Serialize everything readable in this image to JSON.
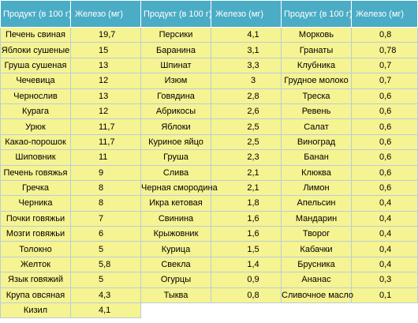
{
  "header": {
    "product": "Продукт (в 100 г)",
    "iron": "Железо (мг)"
  },
  "rows": [
    {
      "p1": "Печень свиная",
      "v1": "19,7",
      "p2": "Персики",
      "v2": "4,1",
      "p3": "Морковь",
      "v3": "0,8"
    },
    {
      "p1": "Яблоки сушеные",
      "v1": "15",
      "p2": "Баранина",
      "v2": "3,1",
      "p3": "Гранаты",
      "v3": "0,78"
    },
    {
      "p1": "Груша сушеная",
      "v1": "13",
      "p2": "Шпинат",
      "v2": "3,3",
      "p3": "Клубника",
      "v3": "0,7"
    },
    {
      "p1": "Чечевица",
      "v1": "12",
      "p2": "Изюм",
      "v2": "3",
      "p3": "Грудное молоко",
      "v3": "0,7"
    },
    {
      "p1": "Чернослив",
      "v1": "13",
      "p2": "Говядина",
      "v2": "2,8",
      "p3": "Треска",
      "v3": "0,6"
    },
    {
      "p1": "Курага",
      "v1": "12",
      "p2": "Абрикосы",
      "v2": "2,6",
      "p3": "Ревень",
      "v3": "0,6"
    },
    {
      "p1": "Урюк",
      "v1": "11,7",
      "p2": "Яблоки",
      "v2": "2,5",
      "p3": "Салат",
      "v3": "0,6"
    },
    {
      "p1": "Какао-порошок",
      "v1": "11,7",
      "p2": "Куриное яйцо",
      "v2": "2,5",
      "p3": "Виноград",
      "v3": "0,6"
    },
    {
      "p1": "Шиповник",
      "v1": "11",
      "p2": "Груша",
      "v2": "2,3",
      "p3": "Банан",
      "v3": "0,6"
    },
    {
      "p1": "Печень говяжья",
      "v1": "9",
      "p2": "Слива",
      "v2": "2,1",
      "p3": "Клюква",
      "v3": "0,6"
    },
    {
      "p1": "Гречка",
      "v1": "8",
      "p2": "Черная смородина",
      "v2": "2,1",
      "p3": "Лимон",
      "v3": "0,6"
    },
    {
      "p1": "Черника",
      "v1": "8",
      "p2": "Икра кетовая",
      "v2": "1,8",
      "p3": "Апельсин",
      "v3": "0,4"
    },
    {
      "p1": "Почки говяжьи",
      "v1": "7",
      "p2": "Свинина",
      "v2": "1,6",
      "p3": "Мандарин",
      "v3": "0,4"
    },
    {
      "p1": "Мозги говяжьи",
      "v1": "6",
      "p2": "Крыжовник",
      "v2": "1,6",
      "p3": "Творог",
      "v3": "0,4"
    },
    {
      "p1": "Толокно",
      "v1": "5",
      "p2": "Курица",
      "v2": "1,5",
      "p3": "Кабачки",
      "v3": "0,4"
    },
    {
      "p1": "Желток",
      "v1": "5,8",
      "p2": "Свекла",
      "v2": "1,4",
      "p3": "Брусника",
      "v3": "0,4"
    },
    {
      "p1": "Язык говяжий",
      "v1": "5",
      "p2": "Огурцы",
      "v2": "0,9",
      "p3": "Ананас",
      "v3": "0,3"
    },
    {
      "p1": "Крупа овсяная",
      "v1": "4,3",
      "p2": "Тыква",
      "v2": "0,8",
      "p3": "Сливочное масло",
      "v3": "0,1"
    },
    {
      "p1": "Кизил",
      "v1": "4,1",
      "p2": "",
      "v2": "",
      "p3": "",
      "v3": ""
    }
  ]
}
